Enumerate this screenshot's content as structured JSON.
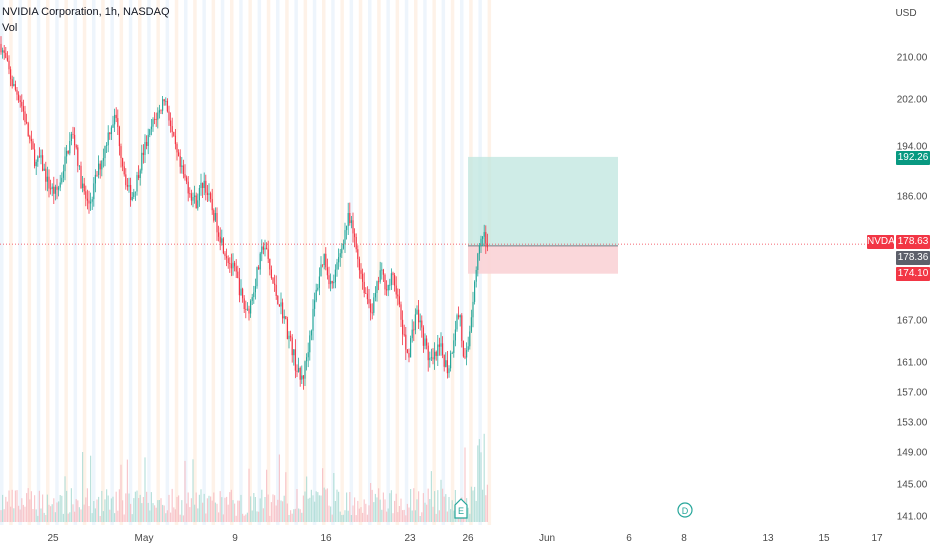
{
  "header": {
    "title": "NVIDIA Corporation, 1h, NASDAQ",
    "volume_label": "Vol"
  },
  "currency": "USD",
  "symbol": "NVDA",
  "colors": {
    "up": "#26a69a",
    "down": "#f23645",
    "grid": "#f0f3fa",
    "profit": "#bfe6df",
    "loss": "#f9d3d6"
  },
  "price_axis": {
    "ticks": [
      "210.00",
      "202.00",
      "194.00",
      "186.00",
      "167.00",
      "161.00",
      "157.00",
      "153.00",
      "149.00",
      "145.00",
      "141.00"
    ]
  },
  "time_axis": {
    "ticks": [
      "25",
      "May",
      "9",
      "16",
      "23",
      "26",
      "Jun",
      "6",
      "8",
      "13",
      "15",
      "17"
    ]
  },
  "tags": {
    "last": "178.63",
    "current": "178.36",
    "target": "192.26",
    "stop": "174.10"
  },
  "events": [
    {
      "label": "E"
    },
    {
      "label": "D"
    }
  ],
  "chart_data": {
    "type": "candlestick",
    "title": "NVIDIA Corporation, 1h, NASDAQ",
    "currency": "USD",
    "position": {
      "type": "long",
      "entry": 178.36,
      "target": 192.26,
      "stop": 174.1
    },
    "last_price": 178.63,
    "close_path": [
      [
        0,
        212.5
      ],
      [
        4,
        210.5
      ],
      [
        8,
        208.0
      ],
      [
        12,
        205.0
      ],
      [
        16,
        203.5
      ],
      [
        20,
        202.0
      ],
      [
        24,
        199.5
      ],
      [
        28,
        196.0
      ],
      [
        32,
        193.5
      ],
      [
        36,
        191.0
      ],
      [
        40,
        192.0
      ],
      [
        44,
        190.0
      ],
      [
        48,
        188.0
      ],
      [
        52,
        187.0
      ],
      [
        56,
        186.5
      ],
      [
        60,
        188.0
      ],
      [
        64,
        191.0
      ],
      [
        68,
        193.5
      ],
      [
        72,
        196.0
      ],
      [
        76,
        194.0
      ],
      [
        80,
        189.0
      ],
      [
        84,
        186.5
      ],
      [
        88,
        184.5
      ],
      [
        92,
        186.0
      ],
      [
        96,
        189.0
      ],
      [
        100,
        191.0
      ],
      [
        104,
        193.0
      ],
      [
        108,
        196.0
      ],
      [
        112,
        198.0
      ],
      [
        116,
        199.0
      ],
      [
        120,
        194.0
      ],
      [
        124,
        190.0
      ],
      [
        128,
        187.0
      ],
      [
        132,
        186.0
      ],
      [
        136,
        188.0
      ],
      [
        140,
        191.0
      ],
      [
        144,
        193.5
      ],
      [
        148,
        195.0
      ],
      [
        152,
        197.5
      ],
      [
        156,
        199.0
      ],
      [
        160,
        200.0
      ],
      [
        164,
        202.5
      ],
      [
        168,
        200.0
      ],
      [
        172,
        196.0
      ],
      [
        176,
        193.0
      ],
      [
        180,
        190.5
      ],
      [
        184,
        189.0
      ],
      [
        188,
        187.5
      ],
      [
        192,
        186.0
      ],
      [
        196,
        185.0
      ],
      [
        200,
        187.0
      ],
      [
        204,
        188.5
      ],
      [
        208,
        186.0
      ],
      [
        212,
        184.0
      ],
      [
        216,
        182.0
      ],
      [
        220,
        180.0
      ],
      [
        224,
        178.0
      ],
      [
        228,
        176.5
      ],
      [
        232,
        175.0
      ],
      [
        236,
        174.0
      ],
      [
        240,
        171.5
      ],
      [
        244,
        169.0
      ],
      [
        248,
        168.5
      ],
      [
        252,
        170.5
      ],
      [
        256,
        173.5
      ],
      [
        260,
        176.0
      ],
      [
        264,
        179.0
      ],
      [
        268,
        176.0
      ],
      [
        272,
        173.0
      ],
      [
        276,
        171.0
      ],
      [
        280,
        169.5
      ],
      [
        284,
        167.5
      ],
      [
        288,
        165.0
      ],
      [
        292,
        163.0
      ],
      [
        296,
        160.5
      ],
      [
        300,
        158.5
      ],
      [
        304,
        159.5
      ],
      [
        308,
        163.0
      ],
      [
        312,
        167.0
      ],
      [
        316,
        171.0
      ],
      [
        320,
        174.5
      ],
      [
        324,
        177.0
      ],
      [
        328,
        174.0
      ],
      [
        332,
        172.0
      ],
      [
        336,
        174.5
      ],
      [
        340,
        177.0
      ],
      [
        344,
        180.0
      ],
      [
        348,
        182.5
      ],
      [
        352,
        181.0
      ],
      [
        356,
        178.0
      ],
      [
        360,
        175.0
      ],
      [
        364,
        172.0
      ],
      [
        368,
        170.0
      ],
      [
        372,
        168.5
      ],
      [
        376,
        171.0
      ],
      [
        380,
        174.5
      ],
      [
        384,
        173.0
      ],
      [
        388,
        172.0
      ],
      [
        392,
        173.5
      ],
      [
        396,
        172.0
      ],
      [
        400,
        168.0
      ],
      [
        404,
        164.0
      ],
      [
        408,
        162.0
      ],
      [
        412,
        165.0
      ],
      [
        416,
        168.5
      ],
      [
        420,
        166.5
      ],
      [
        424,
        164.0
      ],
      [
        428,
        162.0
      ],
      [
        432,
        160.5
      ],
      [
        436,
        162.0
      ],
      [
        440,
        163.0
      ],
      [
        444,
        161.5
      ],
      [
        448,
        160.0
      ],
      [
        452,
        163.0
      ],
      [
        456,
        167.0
      ],
      [
        460,
        168.0
      ],
      [
        464,
        160.0
      ],
      [
        468,
        163.0
      ],
      [
        472,
        169.0
      ],
      [
        476,
        175.0
      ],
      [
        480,
        178.5
      ],
      [
        484,
        179.5
      ],
      [
        488,
        178.63
      ]
    ]
  }
}
